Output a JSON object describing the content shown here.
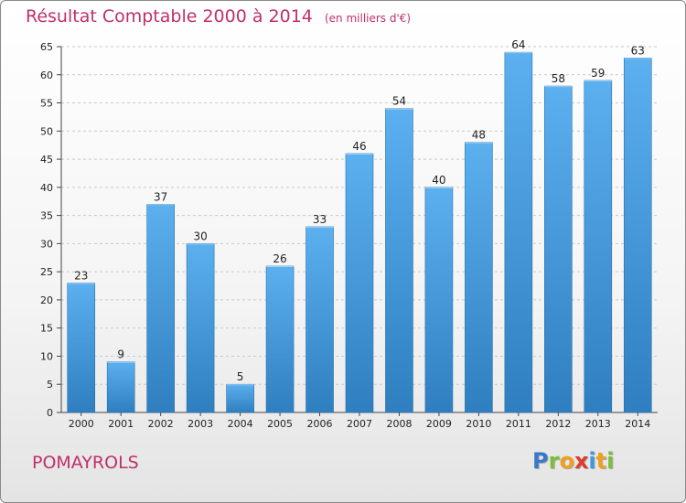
{
  "title": "Résultat Comptable 2000 à 2014",
  "unit_label": "(en milliers d'€)",
  "city": "POMAYROLS",
  "logo": {
    "letters": [
      {
        "char": "P",
        "color": "#3a78c9"
      },
      {
        "char": "r",
        "color": "#7cbf3b"
      },
      {
        "char": "o",
        "color": "#f0a020"
      },
      {
        "char": "x",
        "color": "#e03a2a"
      },
      {
        "char": "i",
        "color": "#3a9be0"
      },
      {
        "char": "t",
        "color": "#f0a020"
      },
      {
        "char": "i",
        "color": "#7cbf3b"
      }
    ]
  },
  "colors": {
    "bar": "#3b8fd0",
    "bar_light": "#5aaef0",
    "title": "#c0306a"
  },
  "chart_data": {
    "type": "bar",
    "title": "Résultat Comptable 2000 à 2014",
    "ylabel": "en milliers d'€",
    "xlabel": "",
    "categories": [
      "2000",
      "2001",
      "2002",
      "2003",
      "2004",
      "2005",
      "2006",
      "2007",
      "2008",
      "2009",
      "2010",
      "2011",
      "2012",
      "2013",
      "2014"
    ],
    "values": [
      23,
      9,
      37,
      30,
      5,
      26,
      33,
      46,
      54,
      40,
      48,
      64,
      58,
      59,
      63
    ],
    "ylim": [
      0,
      65
    ],
    "yticks": [
      0,
      5,
      10,
      15,
      20,
      25,
      30,
      35,
      40,
      45,
      50,
      55,
      60,
      65
    ],
    "grid": true
  }
}
